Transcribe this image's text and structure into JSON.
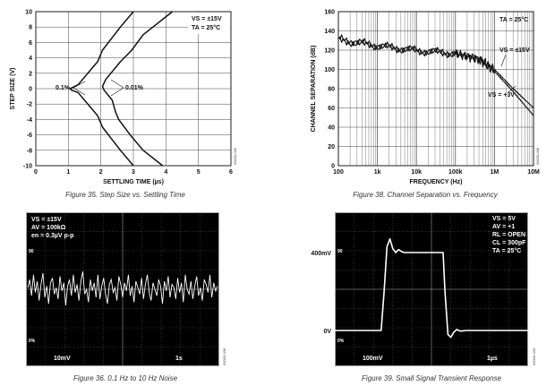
{
  "chart_data": [
    {
      "type": "line",
      "caption": "Figure 35. Step Size vs. Settling Time",
      "xlabel": "SETTLING TIME (µs)",
      "ylabel": "STEP SIZE (V)",
      "xlim": [
        0,
        6
      ],
      "ylim": [
        -10,
        10
      ],
      "x_ticks": [
        "0",
        "1",
        "2",
        "3",
        "4",
        "5",
        "6"
      ],
      "y_ticks": [
        "10",
        "8",
        "6",
        "4",
        "2",
        "0",
        "-2",
        "-4",
        "-6",
        "-8",
        "-10"
      ],
      "annotations": [
        "0.1%",
        "0.01%"
      ],
      "conditions": [
        "VS = ±15V",
        "TA = 25°C"
      ],
      "side_code": "00000-035",
      "grid": true,
      "series": [
        {
          "name": "0.1%",
          "x": [
            3.0,
            2.6,
            2.05,
            1.9,
            1.3,
            1.15,
            1.05,
            1.1,
            1.3,
            1.9,
            2.05,
            2.6,
            3.0
          ],
          "y": [
            10,
            8,
            5,
            3.5,
            0.5,
            0.2,
            0,
            -0.2,
            -0.5,
            -3.5,
            -5,
            -8,
            -10
          ]
        },
        {
          "name": "0.01%",
          "x": [
            4.2,
            3.3,
            2.95,
            2.6,
            2.15,
            2.05,
            2.1,
            2.35,
            2.45,
            2.55,
            2.9,
            3.3,
            3.9
          ],
          "y": [
            10,
            7,
            5,
            3.5,
            1.2,
            0.3,
            -0.2,
            -1.5,
            -3,
            -4,
            -6,
            -8,
            -10
          ]
        }
      ]
    },
    {
      "type": "line",
      "caption": "Figure 38. Channel Separation vs. Frequency",
      "xlabel": "FREQUENCY (Hz)",
      "ylabel": "CHANNEL SEPARATION (dB)",
      "xscale": "log",
      "xlim": [
        100,
        10000000
      ],
      "ylim": [
        0,
        160
      ],
      "x_ticks": [
        "100",
        "1k",
        "10k",
        "100k",
        "1M",
        "10M"
      ],
      "y_ticks": [
        "160",
        "140",
        "120",
        "100",
        "80",
        "60",
        "40",
        "20",
        "0"
      ],
      "annotations": [
        "TA = 25°C",
        "VS = ±15V",
        "VS = +3V"
      ],
      "side_code": "00000-038",
      "grid": true,
      "series": [
        {
          "name": "VS = ±15V",
          "x": [
            100,
            1000,
            10000,
            100000,
            400000,
            1000000,
            3000000,
            10000000
          ],
          "y": [
            132,
            125,
            120,
            117,
            112,
            100,
            80,
            60
          ]
        },
        {
          "name": "VS = +3V",
          "x": [
            100,
            1000,
            10000,
            100000,
            400000,
            1000000,
            3000000,
            10000000
          ],
          "y": [
            130,
            124,
            119,
            116,
            110,
            98,
            77,
            52
          ]
        }
      ]
    },
    {
      "type": "line",
      "caption": "Figure 36. 0.1 Hz to 10 Hz Noise",
      "conditions": [
        "VS = ±15V",
        "AV = 100kΩ",
        "en = 0.3µV p-p"
      ],
      "scale_left": "10mV",
      "scale_right": "1s",
      "marker_top": "90",
      "marker_bottom": "0%",
      "side_code": "00000-036",
      "series": [
        {
          "name": "noise",
          "x": [
            0,
            1,
            2,
            3,
            4,
            5,
            6,
            7,
            8,
            9,
            10,
            11,
            12,
            13,
            14,
            15,
            16,
            17,
            18,
            19,
            20,
            21,
            22,
            23,
            24,
            25,
            26,
            27,
            28,
            29,
            30,
            31,
            32,
            33,
            34,
            35,
            36,
            37,
            38,
            39,
            40,
            41,
            42,
            43,
            44,
            45,
            46,
            47,
            48,
            49,
            50,
            51,
            52,
            53,
            54,
            55,
            56,
            57,
            58,
            59,
            60,
            61,
            62,
            63,
            64,
            65,
            66,
            67,
            68,
            69,
            70,
            71,
            72,
            73,
            74,
            75,
            76,
            77,
            78,
            79,
            80,
            81,
            82,
            83,
            84,
            85,
            86,
            87,
            88,
            89,
            90,
            91,
            92,
            93,
            94,
            95,
            96,
            97,
            98,
            99,
            100
          ],
          "y": [
            0.1,
            0.6,
            -0.4,
            0.9,
            -0.2,
            0.5,
            -0.7,
            0.3,
            1.0,
            -0.5,
            0.2,
            -0.9,
            0.4,
            0.7,
            -0.3,
            0.1,
            -0.6,
            0.8,
            -0.1,
            0.4,
            -1.0,
            0.2,
            0.6,
            -0.4,
            0.9,
            -0.2,
            0.3,
            -0.7,
            0.5,
            1.1,
            -0.3,
            0.0,
            -0.8,
            0.6,
            -0.1,
            0.4,
            -0.5,
            0.9,
            -0.6,
            0.2,
            0.7,
            -0.3,
            -0.9,
            0.3,
            0.6,
            -0.2,
            0.1,
            -0.7,
            0.8,
            0.3,
            -0.5,
            0.4,
            -0.1,
            0.9,
            -0.4,
            0.2,
            -0.8,
            0.5,
            0.1,
            -0.3,
            0.7,
            -0.6,
            0.3,
            0.9,
            -0.2,
            -0.7,
            0.4,
            0.0,
            -0.4,
            0.6,
            0.2,
            -0.9,
            0.5,
            -0.1,
            0.8,
            -0.5,
            0.3,
            0.1,
            -0.6,
            0.7,
            -0.2,
            0.4,
            -0.8,
            0.9,
            0.0,
            -0.3,
            0.5,
            -0.6,
            0.2,
            0.8,
            -0.4,
            0.1,
            -0.7,
            0.6,
            0.3,
            -0.2,
            0.9,
            -0.5,
            0.4,
            -0.1,
            0.2
          ]
        }
      ]
    },
    {
      "type": "line",
      "caption": "Figure 39. Small Signal Transient Response",
      "conditions": [
        "VS = 5V",
        "AV = +1",
        "RL = OPEN",
        "CL = 300pF",
        "TA = 25°C"
      ],
      "level_labels": [
        "400mV",
        "0V"
      ],
      "scale_left": "100mV",
      "scale_right": "1µs",
      "marker_top": "90",
      "marker_bottom": "0%",
      "side_code": "00000-039",
      "series": [
        {
          "name": "response",
          "x": [
            0,
            2.4,
            2.55,
            2.7,
            2.85,
            3.0,
            3.15,
            3.3,
            3.45,
            3.6,
            3.8,
            4.2,
            5.0,
            5.6,
            5.7,
            5.85,
            6.0,
            6.15,
            6.3,
            6.5,
            6.8,
            7.2,
            10
          ],
          "y": [
            0,
            0,
            200,
            430,
            470,
            420,
            400,
            415,
            405,
            400,
            400,
            400,
            400,
            400,
            200,
            -20,
            -35,
            -10,
            5,
            -3,
            0,
            0,
            0
          ]
        }
      ]
    }
  ]
}
